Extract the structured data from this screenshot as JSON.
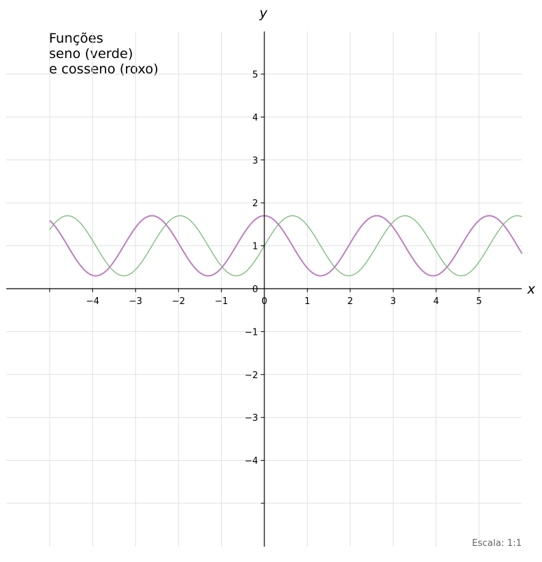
{
  "chart_data": {
    "type": "line",
    "title_lines": [
      "Funções",
      "seno (verde)",
      "e cosseno (roxo)"
    ],
    "xlabel": "x",
    "ylabel": "y",
    "xlim": [
      -6,
      6
    ],
    "ylim": [
      -6,
      6
    ],
    "x_ticks": [
      -4,
      -3,
      -2,
      -1,
      0,
      1,
      2,
      3,
      4,
      5
    ],
    "x_tick_labels": [
      "−4",
      "−3",
      "−2",
      "−1",
      "0",
      "1",
      "2",
      "3",
      "4",
      "5"
    ],
    "y_ticks": [
      5,
      4,
      3,
      2,
      1,
      0,
      -1,
      -2,
      -3,
      -4
    ],
    "y_tick_labels": [
      "5",
      "4",
      "3",
      "2",
      "1",
      "0",
      "−1",
      "−2",
      "−3",
      "−4"
    ],
    "x_grid": [
      -5,
      -4,
      -3,
      -2,
      -1,
      0,
      1,
      2,
      3,
      4,
      5
    ],
    "y_grid": [
      5,
      4,
      3,
      2,
      1,
      -1,
      -2,
      -3,
      -4,
      -5
    ],
    "grid": true,
    "series": [
      {
        "function": "sin",
        "color": "#7fbf7f",
        "offset": 1,
        "amplitude": 0.7,
        "frequency": 2.4,
        "x_range": [
          -5,
          6
        ]
      },
      {
        "function": "cos",
        "color": "#bf7fbf",
        "offset": 1,
        "amplitude": 0.7,
        "frequency": 2.4,
        "x_range": [
          -5,
          6
        ]
      }
    ],
    "colors": {
      "grid": "#e0e0e0",
      "axis": "#000000"
    }
  },
  "footer": {
    "scale_note": "Escala: 1:1"
  }
}
